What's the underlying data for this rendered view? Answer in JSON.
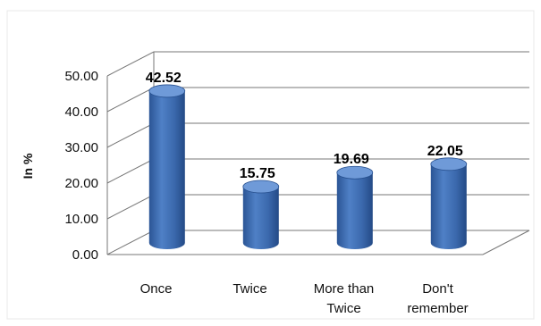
{
  "chart_data": {
    "type": "bar",
    "categories": [
      "Once",
      "Twice",
      "More than Twice",
      "Don't remember"
    ],
    "category_lines": [
      [
        "Once"
      ],
      [
        "Twice"
      ],
      [
        "More than",
        "Twice"
      ],
      [
        "Don't",
        "remember"
      ]
    ],
    "values": [
      42.52,
      15.75,
      19.69,
      22.05
    ],
    "value_labels": [
      "42.52",
      "15.75",
      "19.69",
      "22.05"
    ],
    "ylabel": "In %",
    "xlabel": "",
    "ylim": [
      0,
      50
    ],
    "yticks": [
      "0.00",
      "10.00",
      "20.00",
      "30.00",
      "40.00",
      "50.00"
    ],
    "grid": true,
    "style": "3d-cylinder",
    "colors": {
      "bar_body": "#3f6fb5",
      "bar_top": "#6f9ad8",
      "bar_dark": "#27508f",
      "grid": "#777777",
      "frame": "#e8e8e8"
    }
  }
}
